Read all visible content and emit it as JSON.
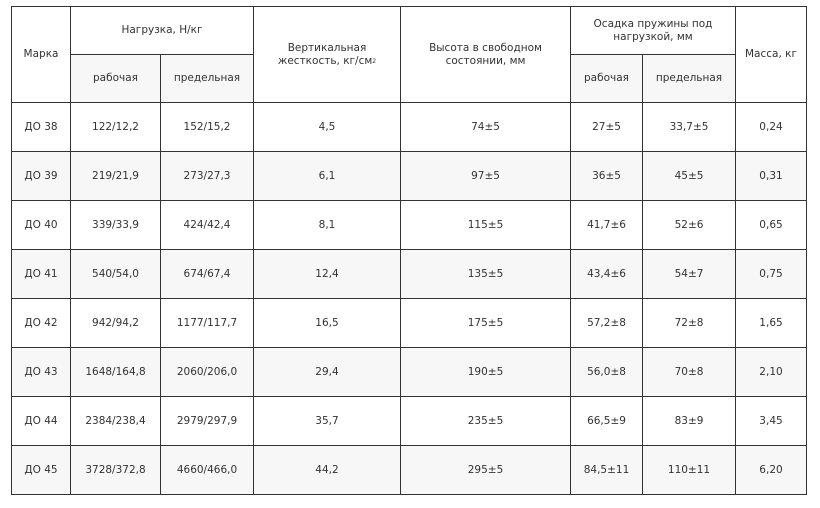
{
  "headers": {
    "mark": "Марка",
    "load": "Нагрузка, Н/кг",
    "stiffness": "Вертикальная жесткость, кг/см",
    "stiffness_sup": "2",
    "height": "Высота в свободном состоянии, мм",
    "settlement": "Осадка пружины под нагрузкой, мм",
    "mass": "Масса, кг",
    "working": "рабочая",
    "limit": "предельная"
  },
  "rows": [
    {
      "mark": "ДО 38",
      "load_work": "122/12,2",
      "load_limit": "152/15,2",
      "stiffness": "4,5",
      "height": "74±5",
      "set_work": "27±5",
      "set_limit": "33,7±5",
      "mass": "0,24"
    },
    {
      "mark": "ДО 39",
      "load_work": "219/21,9",
      "load_limit": "273/27,3",
      "stiffness": "6,1",
      "height": "97±5",
      "set_work": "36±5",
      "set_limit": "45±5",
      "mass": "0,31"
    },
    {
      "mark": "ДО 40",
      "load_work": "339/33,9",
      "load_limit": "424/42,4",
      "stiffness": "8,1",
      "height": "115±5",
      "set_work": "41,7±6",
      "set_limit": "52±6",
      "mass": "0,65"
    },
    {
      "mark": "ДО 41",
      "load_work": "540/54,0",
      "load_limit": "674/67,4",
      "stiffness": "12,4",
      "height": "135±5",
      "set_work": "43,4±6",
      "set_limit": "54±7",
      "mass": "0,75"
    },
    {
      "mark": "ДО 42",
      "load_work": "942/94,2",
      "load_limit": "1177/117,7",
      "stiffness": "16,5",
      "height": "175±5",
      "set_work": "57,2±8",
      "set_limit": "72±8",
      "mass": "1,65"
    },
    {
      "mark": "ДО 43",
      "load_work": "1648/164,8",
      "load_limit": "2060/206,0",
      "stiffness": "29,4",
      "height": "190±5",
      "set_work": "56,0±8",
      "set_limit": "70±8",
      "mass": "2,10"
    },
    {
      "mark": "ДО 44",
      "load_work": "2384/238,4",
      "load_limit": "2979/297,9",
      "stiffness": "35,7",
      "height": "235±5",
      "set_work": "66,5±9",
      "set_limit": "83±9",
      "mass": "3,45"
    },
    {
      "mark": "ДО 45",
      "load_work": "3728/372,8",
      "load_limit": "4660/466,0",
      "stiffness": "44,2",
      "height": "295±5",
      "set_work": "84,5±11",
      "set_limit": "110±11",
      "mass": "6,20"
    }
  ]
}
